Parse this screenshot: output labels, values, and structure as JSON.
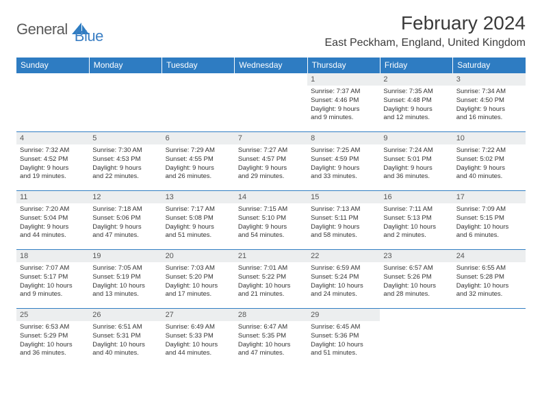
{
  "logo": {
    "general": "General",
    "blue": "Blue"
  },
  "title": "February 2024",
  "location": "East Peckham, England, United Kingdom",
  "colors": {
    "header_bg": "#2e7cc2",
    "header_text": "#ffffff",
    "daybar_bg": "#eceeef",
    "border": "#2e7cc2",
    "logo_gray": "#5a5a5a",
    "logo_blue": "#3b7fc4"
  },
  "weekdays": [
    "Sunday",
    "Monday",
    "Tuesday",
    "Wednesday",
    "Thursday",
    "Friday",
    "Saturday"
  ],
  "weeks": [
    [
      {
        "empty": true
      },
      {
        "empty": true
      },
      {
        "empty": true
      },
      {
        "empty": true
      },
      {
        "day": "1",
        "sunrise": "Sunrise: 7:37 AM",
        "sunset": "Sunset: 4:46 PM",
        "daylight1": "Daylight: 9 hours",
        "daylight2": "and 9 minutes."
      },
      {
        "day": "2",
        "sunrise": "Sunrise: 7:35 AM",
        "sunset": "Sunset: 4:48 PM",
        "daylight1": "Daylight: 9 hours",
        "daylight2": "and 12 minutes."
      },
      {
        "day": "3",
        "sunrise": "Sunrise: 7:34 AM",
        "sunset": "Sunset: 4:50 PM",
        "daylight1": "Daylight: 9 hours",
        "daylight2": "and 16 minutes."
      }
    ],
    [
      {
        "day": "4",
        "sunrise": "Sunrise: 7:32 AM",
        "sunset": "Sunset: 4:52 PM",
        "daylight1": "Daylight: 9 hours",
        "daylight2": "and 19 minutes."
      },
      {
        "day": "5",
        "sunrise": "Sunrise: 7:30 AM",
        "sunset": "Sunset: 4:53 PM",
        "daylight1": "Daylight: 9 hours",
        "daylight2": "and 22 minutes."
      },
      {
        "day": "6",
        "sunrise": "Sunrise: 7:29 AM",
        "sunset": "Sunset: 4:55 PM",
        "daylight1": "Daylight: 9 hours",
        "daylight2": "and 26 minutes."
      },
      {
        "day": "7",
        "sunrise": "Sunrise: 7:27 AM",
        "sunset": "Sunset: 4:57 PM",
        "daylight1": "Daylight: 9 hours",
        "daylight2": "and 29 minutes."
      },
      {
        "day": "8",
        "sunrise": "Sunrise: 7:25 AM",
        "sunset": "Sunset: 4:59 PM",
        "daylight1": "Daylight: 9 hours",
        "daylight2": "and 33 minutes."
      },
      {
        "day": "9",
        "sunrise": "Sunrise: 7:24 AM",
        "sunset": "Sunset: 5:01 PM",
        "daylight1": "Daylight: 9 hours",
        "daylight2": "and 36 minutes."
      },
      {
        "day": "10",
        "sunrise": "Sunrise: 7:22 AM",
        "sunset": "Sunset: 5:02 PM",
        "daylight1": "Daylight: 9 hours",
        "daylight2": "and 40 minutes."
      }
    ],
    [
      {
        "day": "11",
        "sunrise": "Sunrise: 7:20 AM",
        "sunset": "Sunset: 5:04 PM",
        "daylight1": "Daylight: 9 hours",
        "daylight2": "and 44 minutes."
      },
      {
        "day": "12",
        "sunrise": "Sunrise: 7:18 AM",
        "sunset": "Sunset: 5:06 PM",
        "daylight1": "Daylight: 9 hours",
        "daylight2": "and 47 minutes."
      },
      {
        "day": "13",
        "sunrise": "Sunrise: 7:17 AM",
        "sunset": "Sunset: 5:08 PM",
        "daylight1": "Daylight: 9 hours",
        "daylight2": "and 51 minutes."
      },
      {
        "day": "14",
        "sunrise": "Sunrise: 7:15 AM",
        "sunset": "Sunset: 5:10 PM",
        "daylight1": "Daylight: 9 hours",
        "daylight2": "and 54 minutes."
      },
      {
        "day": "15",
        "sunrise": "Sunrise: 7:13 AM",
        "sunset": "Sunset: 5:11 PM",
        "daylight1": "Daylight: 9 hours",
        "daylight2": "and 58 minutes."
      },
      {
        "day": "16",
        "sunrise": "Sunrise: 7:11 AM",
        "sunset": "Sunset: 5:13 PM",
        "daylight1": "Daylight: 10 hours",
        "daylight2": "and 2 minutes."
      },
      {
        "day": "17",
        "sunrise": "Sunrise: 7:09 AM",
        "sunset": "Sunset: 5:15 PM",
        "daylight1": "Daylight: 10 hours",
        "daylight2": "and 6 minutes."
      }
    ],
    [
      {
        "day": "18",
        "sunrise": "Sunrise: 7:07 AM",
        "sunset": "Sunset: 5:17 PM",
        "daylight1": "Daylight: 10 hours",
        "daylight2": "and 9 minutes."
      },
      {
        "day": "19",
        "sunrise": "Sunrise: 7:05 AM",
        "sunset": "Sunset: 5:19 PM",
        "daylight1": "Daylight: 10 hours",
        "daylight2": "and 13 minutes."
      },
      {
        "day": "20",
        "sunrise": "Sunrise: 7:03 AM",
        "sunset": "Sunset: 5:20 PM",
        "daylight1": "Daylight: 10 hours",
        "daylight2": "and 17 minutes."
      },
      {
        "day": "21",
        "sunrise": "Sunrise: 7:01 AM",
        "sunset": "Sunset: 5:22 PM",
        "daylight1": "Daylight: 10 hours",
        "daylight2": "and 21 minutes."
      },
      {
        "day": "22",
        "sunrise": "Sunrise: 6:59 AM",
        "sunset": "Sunset: 5:24 PM",
        "daylight1": "Daylight: 10 hours",
        "daylight2": "and 24 minutes."
      },
      {
        "day": "23",
        "sunrise": "Sunrise: 6:57 AM",
        "sunset": "Sunset: 5:26 PM",
        "daylight1": "Daylight: 10 hours",
        "daylight2": "and 28 minutes."
      },
      {
        "day": "24",
        "sunrise": "Sunrise: 6:55 AM",
        "sunset": "Sunset: 5:28 PM",
        "daylight1": "Daylight: 10 hours",
        "daylight2": "and 32 minutes."
      }
    ],
    [
      {
        "day": "25",
        "sunrise": "Sunrise: 6:53 AM",
        "sunset": "Sunset: 5:29 PM",
        "daylight1": "Daylight: 10 hours",
        "daylight2": "and 36 minutes."
      },
      {
        "day": "26",
        "sunrise": "Sunrise: 6:51 AM",
        "sunset": "Sunset: 5:31 PM",
        "daylight1": "Daylight: 10 hours",
        "daylight2": "and 40 minutes."
      },
      {
        "day": "27",
        "sunrise": "Sunrise: 6:49 AM",
        "sunset": "Sunset: 5:33 PM",
        "daylight1": "Daylight: 10 hours",
        "daylight2": "and 44 minutes."
      },
      {
        "day": "28",
        "sunrise": "Sunrise: 6:47 AM",
        "sunset": "Sunset: 5:35 PM",
        "daylight1": "Daylight: 10 hours",
        "daylight2": "and 47 minutes."
      },
      {
        "day": "29",
        "sunrise": "Sunrise: 6:45 AM",
        "sunset": "Sunset: 5:36 PM",
        "daylight1": "Daylight: 10 hours",
        "daylight2": "and 51 minutes."
      },
      {
        "empty": true
      },
      {
        "empty": true
      }
    ]
  ]
}
